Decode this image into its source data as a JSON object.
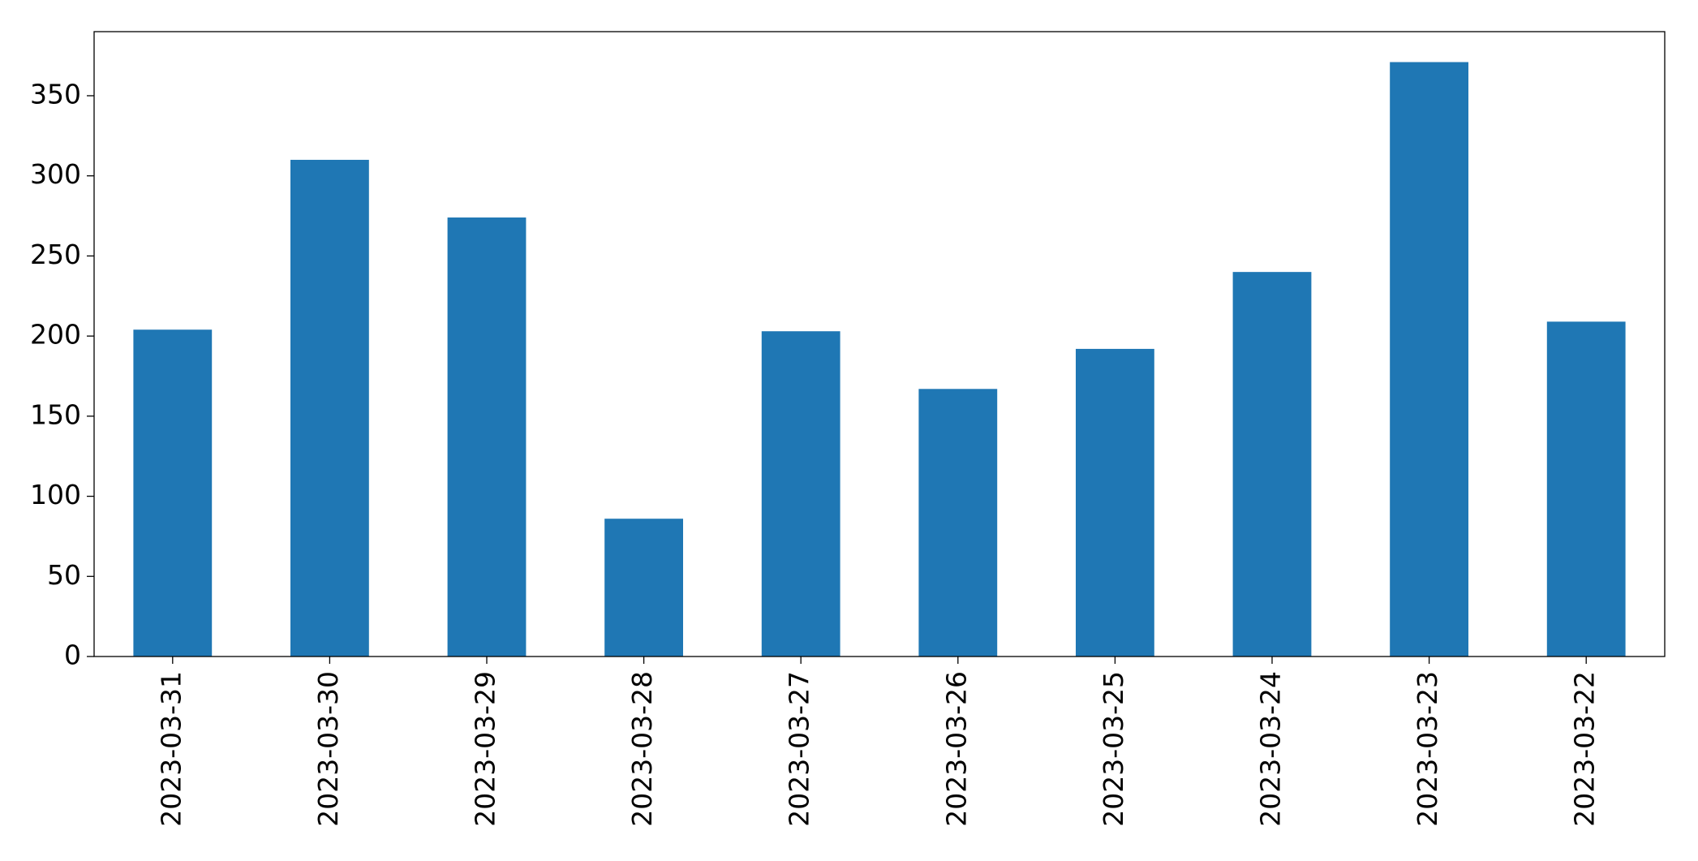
{
  "chart_data": {
    "type": "bar",
    "categories": [
      "2023-03-31",
      "2023-03-30",
      "2023-03-29",
      "2023-03-28",
      "2023-03-27",
      "2023-03-26",
      "2023-03-25",
      "2023-03-24",
      "2023-03-23",
      "2023-03-22"
    ],
    "values": [
      204,
      310,
      274,
      86,
      203,
      167,
      192,
      240,
      371,
      209
    ],
    "color": "#1f77b4",
    "ylim": [
      0,
      390
    ],
    "yticks": [
      0,
      50,
      100,
      150,
      200,
      250,
      300,
      350
    ],
    "grid": false
  }
}
